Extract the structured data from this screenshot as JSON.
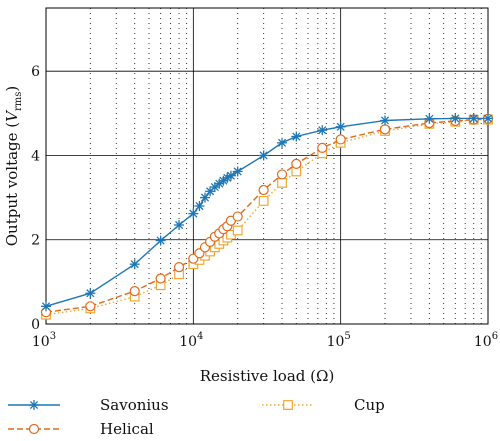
{
  "chart_data": {
    "type": "line",
    "xscale": "log",
    "xlim": [
      1000,
      1000000
    ],
    "ylim": [
      0,
      7.5
    ],
    "xlabel": "Resistive load (Ω)",
    "ylabel_main": "Output voltage (",
    "ylabel_var": "V",
    "ylabel_sub": "rms",
    "ylabel_close": ")",
    "x_ticks": [
      {
        "value": 1000,
        "base": "10",
        "exp": "3"
      },
      {
        "value": 10000,
        "base": "10",
        "exp": "4"
      },
      {
        "value": 100000,
        "base": "10",
        "exp": "5"
      },
      {
        "value": 1000000,
        "base": "10",
        "exp": "6"
      }
    ],
    "y_ticks": [
      0,
      2,
      4,
      6
    ],
    "y_tick_labels": [
      "0",
      "2",
      "4",
      "6"
    ],
    "grid": true,
    "legend_placement": "bottom",
    "series": [
      {
        "name": "Savonius",
        "color": "#1f77b4",
        "linestyle": "solid",
        "marker": "star",
        "points": [
          [
            1000,
            0.42
          ],
          [
            2000,
            0.73
          ],
          [
            4000,
            1.42
          ],
          [
            6000,
            1.98
          ],
          [
            8000,
            2.35
          ],
          [
            10000,
            2.62
          ],
          [
            11000,
            2.8
          ],
          [
            12000,
            3.0
          ],
          [
            13000,
            3.15
          ],
          [
            14000,
            3.25
          ],
          [
            15000,
            3.33
          ],
          [
            16000,
            3.4
          ],
          [
            17000,
            3.47
          ],
          [
            18000,
            3.52
          ],
          [
            20000,
            3.62
          ],
          [
            30000,
            4.0
          ],
          [
            40000,
            4.3
          ],
          [
            50000,
            4.45
          ],
          [
            75000,
            4.6
          ],
          [
            100000,
            4.68
          ],
          [
            200000,
            4.83
          ],
          [
            400000,
            4.87
          ],
          [
            600000,
            4.88
          ],
          [
            800000,
            4.88
          ],
          [
            1000000,
            4.88
          ]
        ]
      },
      {
        "name": "Helical",
        "color": "#e06a1b",
        "linestyle": "dashed",
        "marker": "circle",
        "points": [
          [
            1000,
            0.28
          ],
          [
            2000,
            0.42
          ],
          [
            4000,
            0.78
          ],
          [
            6000,
            1.08
          ],
          [
            8000,
            1.35
          ],
          [
            10000,
            1.55
          ],
          [
            11000,
            1.68
          ],
          [
            12000,
            1.82
          ],
          [
            13000,
            1.95
          ],
          [
            14000,
            2.07
          ],
          [
            15000,
            2.15
          ],
          [
            16000,
            2.25
          ],
          [
            17000,
            2.32
          ],
          [
            18000,
            2.45
          ],
          [
            20000,
            2.55
          ],
          [
            30000,
            3.18
          ],
          [
            40000,
            3.55
          ],
          [
            50000,
            3.8
          ],
          [
            75000,
            4.18
          ],
          [
            100000,
            4.38
          ],
          [
            200000,
            4.62
          ],
          [
            400000,
            4.77
          ],
          [
            600000,
            4.82
          ],
          [
            800000,
            4.85
          ],
          [
            1000000,
            4.87
          ]
        ]
      },
      {
        "name": "Cup",
        "color": "#f0a830",
        "linestyle": "dotted",
        "marker": "square",
        "points": [
          [
            1000,
            0.22
          ],
          [
            2000,
            0.37
          ],
          [
            4000,
            0.65
          ],
          [
            6000,
            0.92
          ],
          [
            8000,
            1.18
          ],
          [
            10000,
            1.42
          ],
          [
            11000,
            1.52
          ],
          [
            12000,
            1.62
          ],
          [
            13000,
            1.72
          ],
          [
            14000,
            1.82
          ],
          [
            15000,
            1.9
          ],
          [
            16000,
            1.98
          ],
          [
            17000,
            2.05
          ],
          [
            18000,
            2.12
          ],
          [
            20000,
            2.22
          ],
          [
            30000,
            2.92
          ],
          [
            40000,
            3.35
          ],
          [
            50000,
            3.62
          ],
          [
            75000,
            4.05
          ],
          [
            100000,
            4.3
          ],
          [
            200000,
            4.58
          ],
          [
            400000,
            4.75
          ],
          [
            600000,
            4.8
          ],
          [
            800000,
            4.85
          ],
          [
            1000000,
            4.85
          ]
        ]
      }
    ]
  }
}
